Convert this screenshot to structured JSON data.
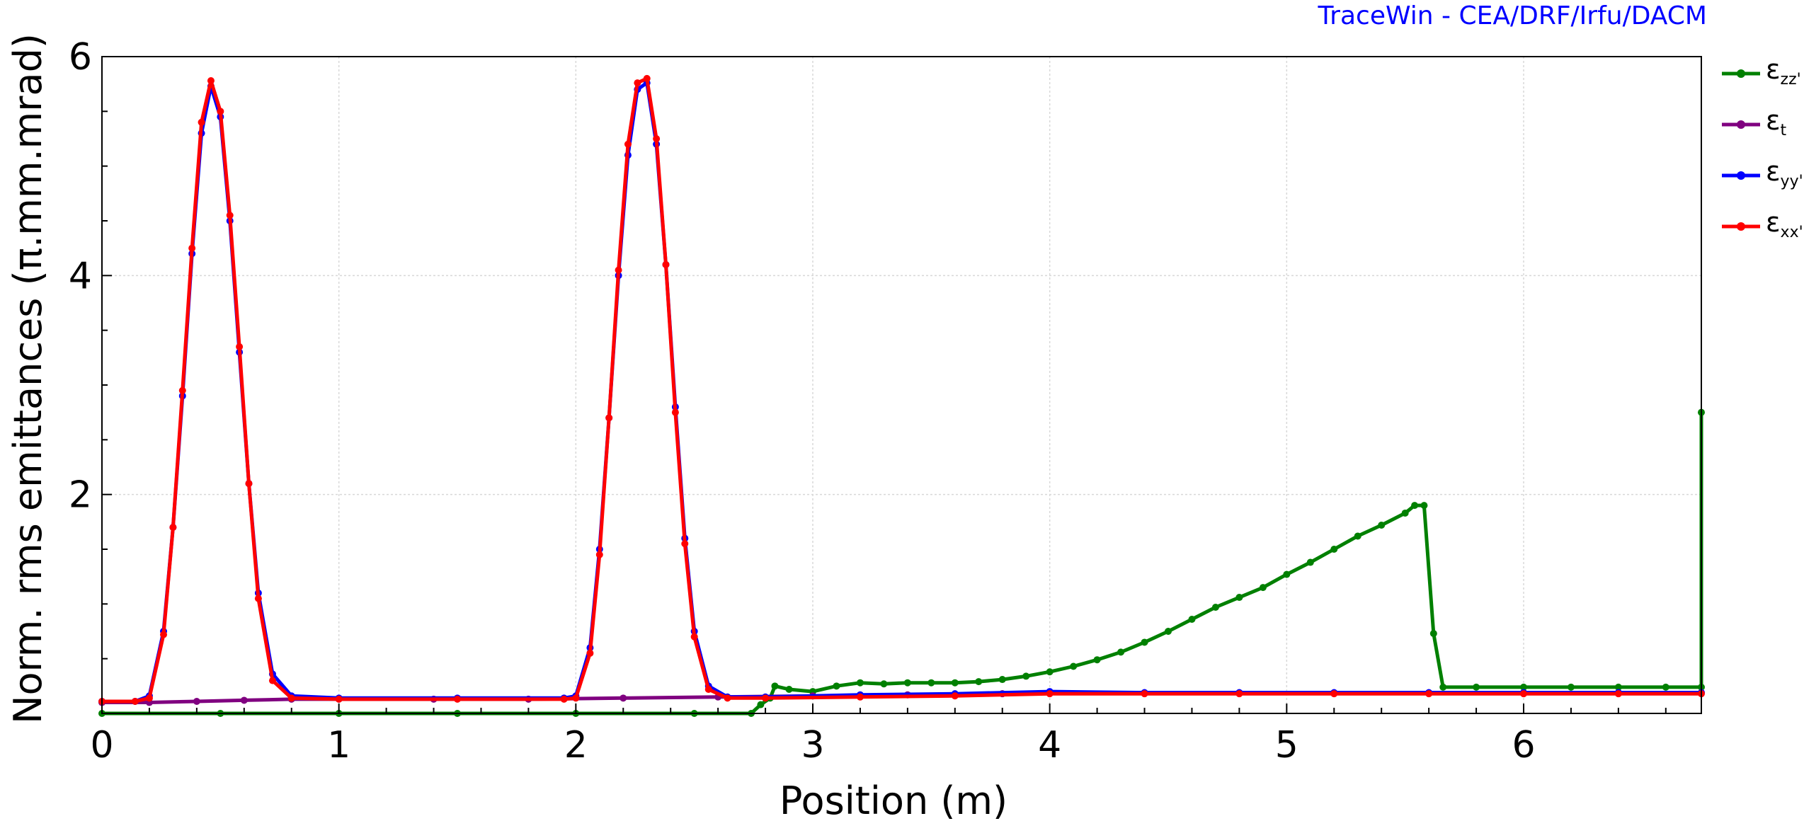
{
  "credit": "TraceWin - CEA/DRF/Irfu/DACM",
  "chart_data": {
    "type": "line",
    "title": "",
    "xlabel": "Position (m)",
    "ylabel": "Norm. rms emittances (π.mm.mrad)",
    "xlim": [
      0,
      6.75
    ],
    "ylim": [
      0,
      6
    ],
    "xticks": [
      0,
      1,
      2,
      3,
      4,
      5,
      6
    ],
    "yticks": [
      2,
      4,
      6
    ],
    "xtick_labels": [
      "0",
      "1",
      "2",
      "3",
      "4",
      "5",
      "6"
    ],
    "ytick_labels": [
      "2",
      "4",
      "6"
    ],
    "grid": true,
    "legend_position": "right",
    "series": [
      {
        "name": "ε_zz'",
        "symbol": "ε",
        "subscript": "zz'",
        "color": "#008000",
        "x": [
          0,
          0.5,
          1.0,
          1.5,
          2.0,
          2.5,
          2.74,
          2.78,
          2.82,
          2.84,
          2.9,
          3.0,
          3.1,
          3.2,
          3.3,
          3.4,
          3.5,
          3.6,
          3.7,
          3.8,
          3.9,
          4.0,
          4.1,
          4.2,
          4.3,
          4.4,
          4.5,
          4.6,
          4.7,
          4.8,
          4.9,
          5.0,
          5.1,
          5.2,
          5.3,
          5.4,
          5.5,
          5.54,
          5.58,
          5.62,
          5.66,
          5.8,
          6.0,
          6.2,
          6.4,
          6.6,
          6.75,
          6.75
        ],
        "y": [
          0.0,
          0.0,
          0.0,
          0.0,
          0.0,
          0.0,
          0.0,
          0.08,
          0.14,
          0.25,
          0.22,
          0.2,
          0.25,
          0.28,
          0.27,
          0.28,
          0.28,
          0.28,
          0.29,
          0.31,
          0.34,
          0.38,
          0.43,
          0.49,
          0.56,
          0.65,
          0.75,
          0.86,
          0.97,
          1.06,
          1.15,
          1.27,
          1.38,
          1.5,
          1.62,
          1.72,
          1.83,
          1.9,
          1.9,
          0.73,
          0.24,
          0.24,
          0.24,
          0.24,
          0.24,
          0.24,
          0.24,
          2.75
        ]
      },
      {
        "name": "ε_t",
        "symbol": "ε",
        "subscript": "t",
        "color": "#800080",
        "x": [
          0,
          0.2,
          0.4,
          0.6,
          0.8,
          1.0,
          1.4,
          1.8,
          2.2,
          2.6,
          3.0,
          3.4,
          3.8,
          4.0,
          4.4,
          4.8,
          5.2,
          5.6,
          6.0,
          6.4,
          6.75
        ],
        "y": [
          0.1,
          0.1,
          0.11,
          0.12,
          0.13,
          0.13,
          0.13,
          0.13,
          0.14,
          0.15,
          0.16,
          0.17,
          0.18,
          0.19,
          0.19,
          0.19,
          0.19,
          0.19,
          0.19,
          0.19,
          0.19
        ]
      },
      {
        "name": "ε_yy'",
        "symbol": "ε",
        "subscript": "yy'",
        "color": "#0000ff",
        "x": [
          0,
          0.14,
          0.2,
          0.26,
          0.3,
          0.34,
          0.38,
          0.42,
          0.46,
          0.5,
          0.54,
          0.58,
          0.62,
          0.66,
          0.72,
          0.8,
          1.0,
          1.5,
          1.95,
          2.0,
          2.06,
          2.1,
          2.14,
          2.18,
          2.22,
          2.26,
          2.3,
          2.34,
          2.38,
          2.42,
          2.46,
          2.5,
          2.56,
          2.64,
          2.8,
          3.2,
          3.6,
          4.0,
          4.4,
          4.8,
          5.2,
          5.6,
          6.0,
          6.4,
          6.75
        ],
        "y": [
          0.11,
          0.11,
          0.16,
          0.75,
          1.7,
          2.9,
          4.2,
          5.3,
          5.73,
          5.45,
          4.5,
          3.3,
          2.1,
          1.1,
          0.36,
          0.16,
          0.14,
          0.14,
          0.14,
          0.16,
          0.6,
          1.5,
          2.7,
          4.0,
          5.1,
          5.7,
          5.76,
          5.2,
          4.1,
          2.8,
          1.6,
          0.75,
          0.25,
          0.15,
          0.15,
          0.17,
          0.18,
          0.2,
          0.19,
          0.19,
          0.19,
          0.19,
          0.19,
          0.19,
          0.19
        ]
      },
      {
        "name": "ε_xx'",
        "symbol": "ε",
        "subscript": "xx'",
        "color": "#ff0000",
        "x": [
          0,
          0.14,
          0.2,
          0.26,
          0.3,
          0.34,
          0.38,
          0.42,
          0.46,
          0.5,
          0.54,
          0.58,
          0.62,
          0.66,
          0.72,
          0.8,
          1.0,
          1.5,
          1.95,
          2.0,
          2.06,
          2.1,
          2.14,
          2.18,
          2.22,
          2.26,
          2.3,
          2.34,
          2.38,
          2.42,
          2.46,
          2.5,
          2.56,
          2.64,
          2.8,
          3.2,
          3.6,
          4.0,
          4.4,
          4.8,
          5.2,
          5.6,
          6.0,
          6.4,
          6.75
        ],
        "y": [
          0.11,
          0.11,
          0.14,
          0.72,
          1.7,
          2.95,
          4.25,
          5.4,
          5.78,
          5.5,
          4.55,
          3.35,
          2.1,
          1.05,
          0.3,
          0.14,
          0.13,
          0.13,
          0.13,
          0.14,
          0.55,
          1.45,
          2.7,
          4.05,
          5.2,
          5.76,
          5.8,
          5.25,
          4.1,
          2.75,
          1.55,
          0.7,
          0.22,
          0.14,
          0.14,
          0.15,
          0.16,
          0.18,
          0.18,
          0.18,
          0.18,
          0.18,
          0.18,
          0.18,
          0.18
        ]
      }
    ]
  }
}
